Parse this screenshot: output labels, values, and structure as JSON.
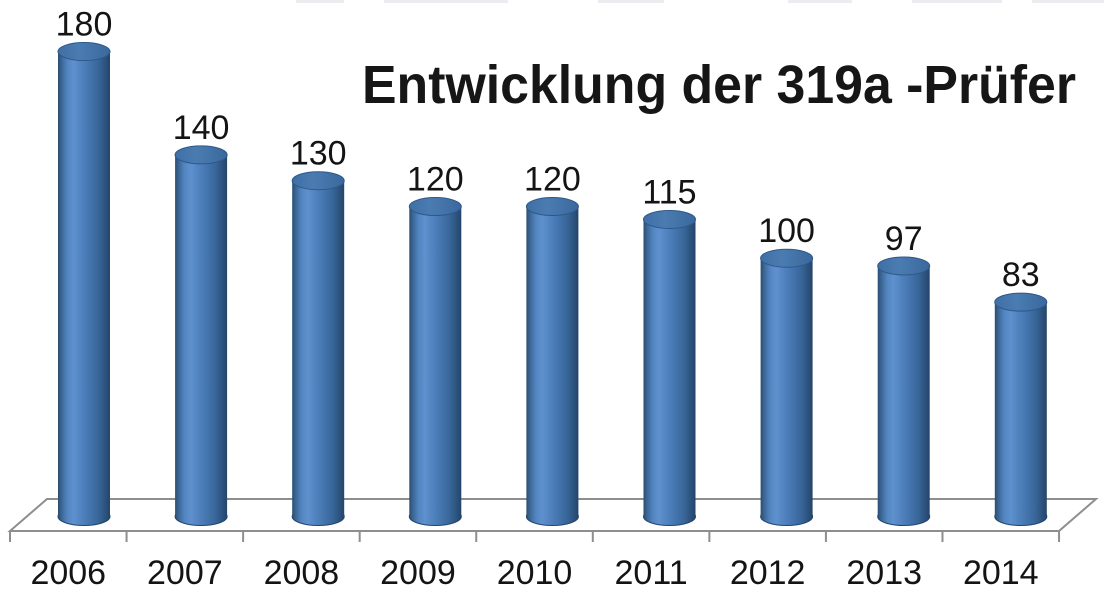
{
  "chart_data": {
    "type": "bar",
    "subtype": "3d-cylinder",
    "title": "Entwicklung der  319a -Prüfer",
    "categories": [
      "2006",
      "2007",
      "2008",
      "2009",
      "2010",
      "2011",
      "2012",
      "2013",
      "2014"
    ],
    "values": [
      180,
      140,
      130,
      120,
      120,
      115,
      100,
      97,
      83
    ],
    "value_labels": [
      "180",
      "140",
      "130",
      "120",
      "120",
      "115",
      "100",
      "97",
      "83"
    ],
    "xlabel": "",
    "ylabel": "",
    "ylim": [
      0,
      190
    ],
    "grid": false,
    "legend": "none",
    "colors": {
      "bar_color": "#4f81bd",
      "bar_highlight": "#5e91cd",
      "bar_shadow": "#2a4c72",
      "bar_top_face": "#4678ae",
      "floor_fill": "#ffffff",
      "floor_edge": "#8e8e8e",
      "title_color": "#161616",
      "label_color": "#141414",
      "background": "#ffffff"
    }
  }
}
